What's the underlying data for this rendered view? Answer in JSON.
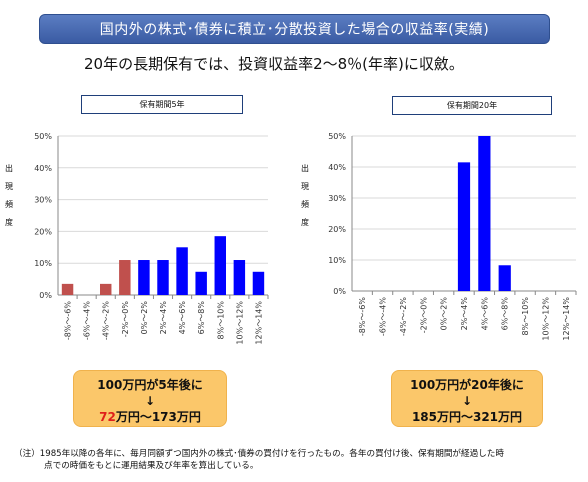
{
  "header": {
    "title": "国内外の株式･債券に積立･分散投資した場合の収益率(実績)"
  },
  "subtitle": "20年の長期保有では、投資収益率2～8％(年率)に収斂。",
  "ylabel_chars": [
    "出",
    "現",
    "頻",
    "度"
  ],
  "chart_data": [
    {
      "type": "bar",
      "title": "保有期間5年",
      "ylabel": "出現頻度",
      "yticks": [
        "0%",
        "10%",
        "20%",
        "30%",
        "40%",
        "50%"
      ],
      "ylim": [
        0,
        50
      ],
      "categories": [
        "-8%～-6%",
        "-6%～-4%",
        "-4%～-2%",
        "-2%～0%",
        "0%～2%",
        "2%～4%",
        "4%～6%",
        "6%～8%",
        "8%～10%",
        "10%～12%",
        "12%～14%"
      ],
      "values": [
        3.5,
        0,
        3.5,
        11,
        11,
        11,
        15,
        7.3,
        18.5,
        11,
        7.3
      ],
      "bar_colors": [
        "#c0504d",
        "#c0504d",
        "#c0504d",
        "#c0504d",
        "#0000ff",
        "#0000ff",
        "#0000ff",
        "#0000ff",
        "#0000ff",
        "#0000ff",
        "#0000ff"
      ],
      "grid": true
    },
    {
      "type": "bar",
      "title": "保有期間20年",
      "ylabel": "出現頻度",
      "yticks": [
        "0%",
        "10%",
        "20%",
        "30%",
        "40%",
        "50%"
      ],
      "ylim": [
        0,
        50
      ],
      "categories": [
        "-8%～-6%",
        "-6%～-4%",
        "-4%～-2%",
        "-2%～0%",
        "0%～2%",
        "2%～4%",
        "4%～6%",
        "6%～8%",
        "8%～10%",
        "10%～12%",
        "12%～14%"
      ],
      "values": [
        0,
        0,
        0,
        0,
        0,
        41.5,
        50,
        8.3,
        0,
        0,
        0
      ],
      "bar_colors": [
        "#0000ff",
        "#0000ff",
        "#0000ff",
        "#0000ff",
        "#0000ff",
        "#0000ff",
        "#0000ff",
        "#0000ff",
        "#0000ff",
        "#0000ff",
        "#0000ff"
      ],
      "grid": true
    }
  ],
  "results": [
    {
      "line1": "100万円が5年後に",
      "arrow": "↓",
      "low": "72",
      "rest": "万円～173万円"
    },
    {
      "line1": "100万円が20年後に",
      "arrow": "↓",
      "line3": "185万円～321万円"
    }
  ],
  "note": {
    "line1": "（注）1985年以降の各年に、毎月同額ずつ国内外の株式･債券の買付けを行ったもの。各年の買付け後、保有期間が経過した時",
    "line2": "点での時価をもとに運用結果及び年率を算出している。"
  }
}
